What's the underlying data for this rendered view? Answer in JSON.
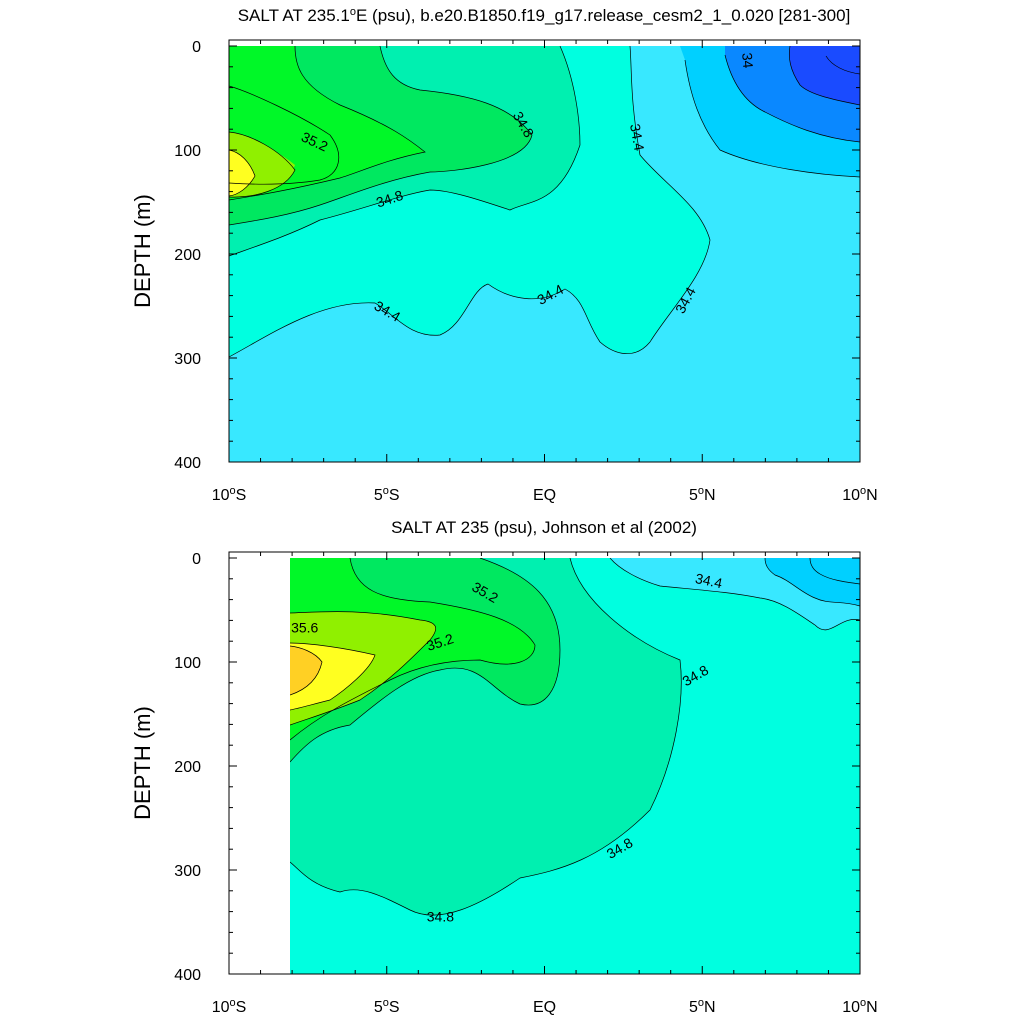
{
  "chart_data": [
    {
      "type": "contour",
      "title": "SALT AT 235.1°E (psu), b.e20.B1850.f19_g17.release_cesm2_1_0.020 [281-300]",
      "title_parts": [
        "SALT AT 235.1",
        "o",
        "E (psu), b.e20.B1850.f19_g17.release_cesm2_1_0.020 [281-300]"
      ],
      "ylabel": "DEPTH (m)",
      "xlim": [
        -10,
        10
      ],
      "ylim": [
        400,
        0
      ],
      "yticks": [
        "0",
        "100",
        "200",
        "300",
        "400"
      ],
      "xticks": [
        {
          "value": -10,
          "num": "10",
          "sup": "o",
          "hem": "S"
        },
        {
          "value": -5,
          "num": "5",
          "sup": "o",
          "hem": "S"
        },
        {
          "value": 0,
          "num": "EQ",
          "sup": "",
          "hem": ""
        },
        {
          "value": 5,
          "num": "5",
          "sup": "o",
          "hem": "N"
        },
        {
          "value": 10,
          "num": "10",
          "sup": "o",
          "hem": "N"
        }
      ],
      "contour_labels": [
        {
          "text": "35.2",
          "lon": -7.3,
          "depth": 93,
          "angle": 25
        },
        {
          "text": "34.8",
          "lon": -4.9,
          "depth": 148,
          "angle": -18
        },
        {
          "text": "34.8",
          "lon": -0.7,
          "depth": 76,
          "angle": 60
        },
        {
          "text": "34.4",
          "lon": 2.9,
          "depth": 88,
          "angle": 80
        },
        {
          "text": "34",
          "lon": 6.4,
          "depth": 14,
          "angle": 85
        },
        {
          "text": "34.4",
          "lon": -5.0,
          "depth": 256,
          "angle": 30
        },
        {
          "text": "34.4",
          "lon": 0.2,
          "depth": 240,
          "angle": -28
        },
        {
          "text": "34.4",
          "lon": 4.5,
          "depth": 245,
          "angle": -62
        }
      ]
    },
    {
      "type": "contour",
      "title": "SALT AT 235 (psu), Johnson et al (2002)",
      "title_parts": [
        "SALT AT 235 (psu), Johnson et al (2002)",
        "",
        ""
      ],
      "ylabel": "DEPTH (m)",
      "xlim": [
        -10,
        10
      ],
      "ylim": [
        400,
        0
      ],
      "yticks": [
        "0",
        "100",
        "200",
        "300",
        "400"
      ],
      "xticks": [
        {
          "value": -10,
          "num": "10",
          "sup": "o",
          "hem": "S"
        },
        {
          "value": -5,
          "num": "5",
          "sup": "o",
          "hem": "S"
        },
        {
          "value": 0,
          "num": "EQ",
          "sup": "",
          "hem": ""
        },
        {
          "value": 5,
          "num": "5",
          "sup": "o",
          "hem": "N"
        },
        {
          "value": 10,
          "num": "10",
          "sup": "o",
          "hem": "N"
        }
      ],
      "contour_labels": [
        {
          "text": "35.6",
          "lon": -7.6,
          "depth": 68,
          "angle": 0
        },
        {
          "text": "35.2",
          "lon": -3.3,
          "depth": 82,
          "angle": -18
        },
        {
          "text": "35.2",
          "lon": -1.9,
          "depth": 34,
          "angle": 30
        },
        {
          "text": "34.4",
          "lon": 5.2,
          "depth": 23,
          "angle": 12
        },
        {
          "text": "34.8",
          "lon": 4.8,
          "depth": 114,
          "angle": -30
        },
        {
          "text": "34.8",
          "lon": 2.4,
          "depth": 280,
          "angle": -30
        },
        {
          "text": "34.8",
          "lon": -3.3,
          "depth": 346,
          "angle": 0
        }
      ]
    }
  ],
  "colors": {
    "s_below_34": "#1a4bff",
    "s_34_34_2": "#0a88ff",
    "s_34_2_34_4": "#00d0ff",
    "s_34_4_34_6": "#38e8ff",
    "s_34_6_34_8": "#00ffe0",
    "s_34_8_35": "#00f0b0",
    "s_35_35_2": "#00e860",
    "s_35_2_35_4": "#00f828",
    "s_35_4_35_6": "#90f000",
    "s_35_6_35_8": "#ffff20",
    "s_above_35_8": "#ffd024"
  }
}
